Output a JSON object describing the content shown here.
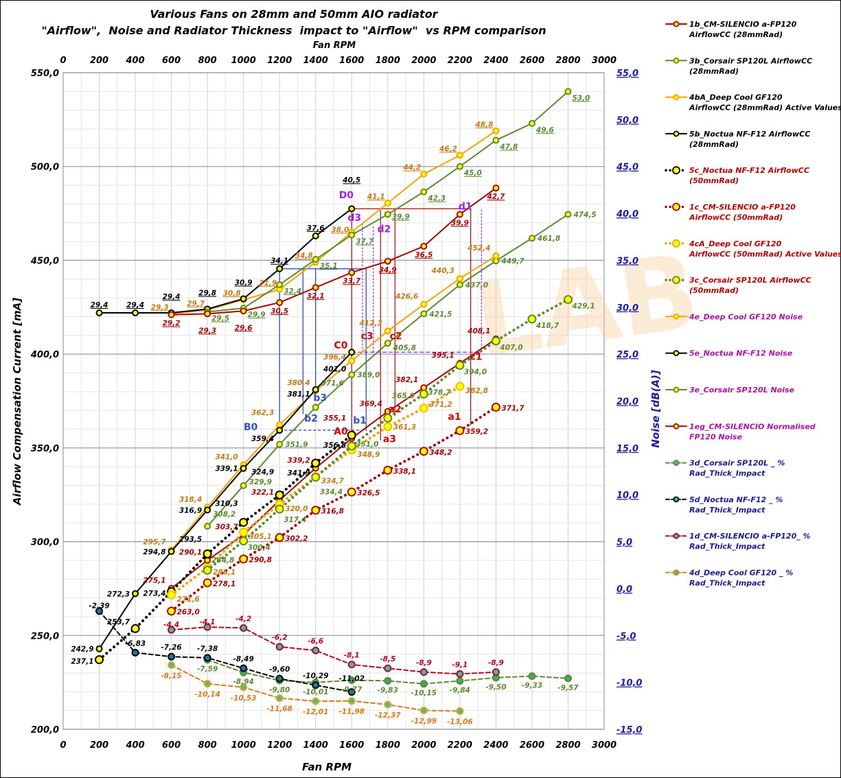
{
  "chart_data": {
    "type": "line",
    "title": "Various Fans on 28mm and 50mm AIO radiator",
    "subtitle": "\"Airflow\",  Noise and Radiator Thickness  impact to \"Airflow\"  vs RPM comparison",
    "xlabel": "Fan RPM",
    "xlabel_top": "Fan RPM",
    "ylabel": "Airflow Compensation Current [mA]",
    "ylabel_right": "Noise  [dB(A)]",
    "xlim": [
      0,
      3000
    ],
    "ylim": [
      200,
      550
    ],
    "ylim_right": [
      -15,
      55
    ],
    "x_ticks": [
      0,
      200,
      400,
      600,
      800,
      1000,
      1200,
      1400,
      1600,
      1800,
      2000,
      2200,
      2400,
      2600,
      2800,
      3000
    ],
    "y_ticks": [
      "200,0",
      "250,0",
      "300,0",
      "350,0",
      "400,0",
      "450,0",
      "500,0",
      "550,0"
    ],
    "y_ticks_right": [
      "-15,0",
      "-10,0",
      "-5,0",
      "0,0",
      "5,0",
      "10,0",
      "15,0",
      "20,0",
      "25,0",
      "30,0",
      "35,0",
      "40,0",
      "45,0",
      "50,0",
      "55,0"
    ],
    "grid": true,
    "legend_position": "right",
    "watermark": "OCLAB.cr",
    "colors": {
      "red": "#b00000",
      "green": "#5b8a2e",
      "orange": "#f5a300",
      "black": "#000000",
      "purple": "#a020f0",
      "blue": "#1f3fbf",
      "teal": "#3bbfa8"
    },
    "series": [
      {
        "name": "1b_CM-SILENCIO a-FP120 AirflowCC (28mmRad)",
        "axis": "left",
        "style": "solid",
        "color": "#b00000",
        "legend_color": "#000000",
        "x_start": 600,
        "x_step": 200,
        "decimals": 1,
        "values": [
          275.1,
          290.1,
          303.7,
          322.1,
          339.2,
          355.1,
          369.4,
          382.1,
          395.1,
          408.1
        ]
      },
      {
        "name": "3b_Corsair SP120L AirflowCC (28mmRad)",
        "axis": "left",
        "style": "solid",
        "color": "#5b8a2e",
        "legend_color": "#000000",
        "x_start": 800,
        "x_step": 200,
        "decimals": 1,
        "values": [
          308.2,
          329.9,
          351.9,
          371.6,
          389.0,
          405.8,
          421.5,
          437.0,
          449.7,
          461.8,
          474.5
        ]
      },
      {
        "name": "4bA_Deep Cool  GF120 AirflowCC (28mmRad) Active Values Set",
        "axis": "left",
        "style": "solid",
        "color": "#f5a300",
        "legend_color": "#000000",
        "x_start": 600,
        "x_step": 200,
        "decimals": 1,
        "values": [
          295.7,
          318.4,
          341.0,
          362.3,
          380.4,
          396.4,
          412.3,
          426.6,
          440.3,
          452.4
        ]
      },
      {
        "name": "5b_Noctua NF-F12  AirflowCC (28mmRad)",
        "axis": "left",
        "style": "solid",
        "color": "#000000",
        "legend_color": "#000000",
        "x_start": 200,
        "x_step": 200,
        "decimals": 1,
        "values": [
          242.9,
          272.3,
          294.8,
          316.9,
          339.1,
          359.4,
          381.1,
          401.0
        ]
      },
      {
        "name": "5c_Noctua NF-F12  AirflowCC (50mmRad)",
        "axis": "left",
        "style": "dotted",
        "color": "#000000",
        "legend_color": "#c00000",
        "x_start": 200,
        "x_step": 200,
        "decimals": 1,
        "values": [
          237.1,
          253.7,
          273.4,
          293.5,
          310.3,
          324.9,
          341.9,
          356.8
        ]
      },
      {
        "name": "1c_CM-SILENCIO a-FP120 AirflowCC (50mmRad)",
        "axis": "left",
        "style": "dotted",
        "color": "#b00000",
        "legend_color": "#c00000",
        "x_start": 600,
        "x_step": 200,
        "decimals": 1,
        "values": [
          263.0,
          278.1,
          290.8,
          302.2,
          316.8,
          326.5,
          338.1,
          348.2,
          359.2,
          371.7
        ]
      },
      {
        "name": "4cA_Deep Cool  GF120 AirflowCC (50mmRad) Active Values Set",
        "axis": "left",
        "style": "dotted",
        "color": "#f5a300",
        "legend_color": "#c00000",
        "x_start": 600,
        "x_step": 200,
        "decimals": 1,
        "values": [
          271.6,
          286.1,
          305.1,
          320.0,
          334.7,
          348.9,
          361.3,
          371.2,
          382.8
        ]
      },
      {
        "name": "3c_Corsair SP120L AirflowCC (50mmRad)",
        "axis": "left",
        "style": "dotted",
        "color": "#5b8a2e",
        "legend_color": "#c00000",
        "x_start": 800,
        "x_step": 200,
        "decimals": 1,
        "values": [
          284.8,
          300.4,
          317.4,
          334.4,
          351.0,
          365.9,
          378.7,
          394.0,
          407.0,
          418.7,
          429.1
        ]
      },
      {
        "name": "4e_Deep Cool  GF120 Noise",
        "axis": "right",
        "style": "solid",
        "color": "#f5a300",
        "legend_color": "#b010b0",
        "x_start": 600,
        "x_step": 200,
        "decimals": 1,
        "values": [
          29.3,
          29.7,
          30.8,
          31.9,
          34.8,
          38.0,
          41.1,
          44.2,
          46.2,
          48.8
        ]
      },
      {
        "name": "5e_Noctua NF-F12  Noise",
        "axis": "right",
        "style": "solid",
        "color": "#000000",
        "legend_color": "#b010b0",
        "x_start": 200,
        "x_step": 200,
        "decimals": 1,
        "values": [
          29.4,
          29.4,
          29.4,
          29.8,
          30.9,
          34.1,
          37.6,
          40.5
        ]
      },
      {
        "name": "3e_Corsair SP120L Noise",
        "axis": "right",
        "style": "solid",
        "color": "#5b8a2e",
        "legend_color": "#b010b0",
        "x_start": 800,
        "x_step": 200,
        "decimals": 1,
        "values": [
          29.5,
          29.9,
          32.4,
          35.1,
          37.7,
          39.9,
          42.3,
          45.0,
          47.8,
          49.6,
          53.0
        ]
      },
      {
        "name": "1eg_CM-SILENCIO Normalised  FP120 Noise",
        "axis": "right",
        "style": "solid",
        "color": "#b00000",
        "legend_color": "#b010b0",
        "x_start": 600,
        "x_step": 200,
        "decimals": 1,
        "values": [
          29.2,
          29.3,
          29.6,
          30.5,
          32.1,
          33.7,
          34.9,
          36.5,
          39.9,
          42.7
        ]
      },
      {
        "name": "3d_Corsair SP120L _ % Rad_Thick_Impact",
        "axis": "right",
        "style": "dashed",
        "color": "#5b8a2e",
        "legend_color": "#1a1aa0",
        "x_start": 800,
        "x_step": 200,
        "decimals": 2,
        "values": [
          -7.59,
          -8.94,
          -9.8,
          -10.01,
          -9.77,
          -9.83,
          -10.15,
          -9.84,
          -9.5,
          -9.33,
          -9.57
        ]
      },
      {
        "name": "5d_Noctua NF-F12 _ % Rad_Thick_Impact",
        "axis": "right",
        "style": "dashed",
        "color": "#000000",
        "legend_color": "#1a1aa0",
        "x_start": 200,
        "x_step": 200,
        "decimals": 2,
        "values": [
          -2.39,
          -6.83,
          -7.26,
          -7.38,
          -8.49,
          -9.6,
          -10.29,
          -11.02
        ]
      },
      {
        "name": "1d_CM-SILENCIO a-FP120_ % Rad_Thick_Impact",
        "axis": "right",
        "style": "dashed",
        "color": "#c00020",
        "legend_color": "#1a1aa0",
        "x_start": 600,
        "x_step": 200,
        "decimals": 1,
        "values": [
          -4.4,
          -4.1,
          -4.2,
          -6.2,
          -6.6,
          -8.1,
          -8.5,
          -8.9,
          -9.1,
          -8.9
        ]
      },
      {
        "name": "4d_Deep Cool  GF120 _ % Rad_Thick_Impact",
        "axis": "right",
        "style": "dashed",
        "color": "#e07810",
        "legend_color": "#1a1aa0",
        "x_start": 600,
        "x_step": 200,
        "decimals": 2,
        "values": [
          -8.15,
          -10.14,
          -10.53,
          -11.68,
          -12.01,
          -11.98,
          -12.37,
          -12.99,
          -13.06
        ]
      }
    ],
    "annotations": [
      {
        "text": "A0",
        "x": 1540,
        "y": 357,
        "color": "#e00000"
      },
      {
        "text": "B0",
        "x": 1040,
        "y": 359.5,
        "color": "#3050d0"
      },
      {
        "text": "C0",
        "x": 1540,
        "y": 403,
        "color": "#e00000"
      },
      {
        "text": "D0",
        "x": 1570,
        "y": 483,
        "color": "#a020f0"
      },
      {
        "text": "a1",
        "x": 2170,
        "y": 365,
        "color": "#e00000"
      },
      {
        "text": "a2",
        "x": 1840,
        "y": 369,
        "color": "#e00000"
      },
      {
        "text": "a3",
        "x": 1810,
        "y": 353,
        "color": "#e00000"
      },
      {
        "text": "b1",
        "x": 1645,
        "y": 363,
        "color": "#3050d0"
      },
      {
        "text": "b2",
        "x": 1375,
        "y": 364,
        "color": "#3050d0"
      },
      {
        "text": "b3",
        "x": 1425,
        "y": 375,
        "color": "#3050d0"
      },
      {
        "text": "c1",
        "x": 2290,
        "y": 397,
        "color": "#e00000"
      },
      {
        "text": "c2",
        "x": 1845,
        "y": 408,
        "color": "#e00000"
      },
      {
        "text": "c3",
        "x": 1685,
        "y": 408,
        "color": "#e00000"
      },
      {
        "text": "d1",
        "x": 2230,
        "y": 477,
        "color": "#a020f0"
      },
      {
        "text": "d2",
        "x": 1780,
        "y": 465,
        "color": "#a020f0"
      },
      {
        "text": "d3",
        "x": 1615,
        "y": 471,
        "color": "#a020f0"
      }
    ],
    "guides": [
      {
        "color": "#c00000",
        "dash": "",
        "pts": [
          [
            1600,
            477.5
          ],
          [
            2260,
            477.5
          ]
        ]
      },
      {
        "color": "#c00000",
        "dash": "",
        "pts": [
          [
            1600,
            477.5
          ],
          [
            1600,
            357
          ]
        ]
      },
      {
        "color": "#c00000",
        "dash": "",
        "pts": [
          [
            1760,
            477.5
          ],
          [
            1760,
            354
          ]
        ]
      },
      {
        "color": "#c00000",
        "dash": "",
        "pts": [
          [
            1840,
            477.5
          ],
          [
            1840,
            367
          ]
        ]
      },
      {
        "color": "#c00000",
        "dash": "",
        "pts": [
          [
            2260,
            477.5
          ],
          [
            2260,
            362
          ]
        ]
      },
      {
        "color": "#1f3fbf",
        "dash": "",
        "pts": [
          [
            1200,
            445.5
          ],
          [
            1680,
            445.5
          ]
        ]
      },
      {
        "color": "#1f3fbf",
        "dash": "",
        "pts": [
          [
            1200,
            445.5
          ],
          [
            1200,
            360
          ]
        ]
      },
      {
        "color": "#1f3fbf",
        "dash": "",
        "pts": [
          [
            1330,
            445.5
          ],
          [
            1330,
            368
          ]
        ]
      },
      {
        "color": "#1f3fbf",
        "dash": "",
        "pts": [
          [
            1400,
            445.5
          ],
          [
            1400,
            378
          ]
        ]
      },
      {
        "color": "#1f3fbf",
        "dash": "",
        "pts": [
          [
            1680,
            445.5
          ],
          [
            1680,
            359
          ]
        ]
      },
      {
        "color": "#1f3fbf",
        "dash": "4,3",
        "pts": [
          [
            1200,
            359.4
          ],
          [
            1640,
            359.4
          ]
        ]
      },
      {
        "color": "#a020f0",
        "dash": "6,3",
        "pts": [
          [
            1600,
            401
          ],
          [
            2320,
            401
          ]
        ]
      },
      {
        "color": "#a020f0",
        "dash": "3,2",
        "pts": [
          [
            1660,
            401
          ],
          [
            1660,
            470
          ]
        ]
      },
      {
        "color": "#a020f0",
        "dash": "3,2",
        "pts": [
          [
            1720,
            401
          ],
          [
            1720,
            468
          ]
        ]
      },
      {
        "color": "#a020f0",
        "dash": "3,2",
        "pts": [
          [
            2320,
            401
          ],
          [
            2320,
            477
          ]
        ]
      }
    ]
  }
}
